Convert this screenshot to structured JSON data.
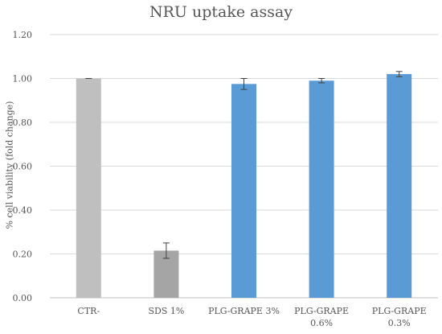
{
  "chart_data": {
    "type": "bar",
    "title": "NRU uptake assay",
    "xlabel": "",
    "ylabel": "% cell viability (fold change)",
    "ylim": [
      0,
      1.2
    ],
    "yticks": [
      "0.00",
      "0.20",
      "0.40",
      "0.60",
      "0.80",
      "1.00",
      "1.20"
    ],
    "categories": [
      [
        "CTR-"
      ],
      [
        "SDS 1%"
      ],
      [
        "PLG-GRAPE 3%"
      ],
      [
        "PLG-GRAPE",
        "0.6%"
      ],
      [
        "PLG-GRAPE",
        "0.3%"
      ]
    ],
    "values": [
      1.0,
      0.215,
      0.975,
      0.99,
      1.02
    ],
    "errors": [
      0.0,
      0.035,
      0.025,
      0.01,
      0.012
    ],
    "bar_colors": [
      "#BFBFBF",
      "#A5A5A5",
      "#5B9BD5",
      "#5B9BD5",
      "#5B9BD5"
    ],
    "grid": true,
    "legend": "none"
  }
}
